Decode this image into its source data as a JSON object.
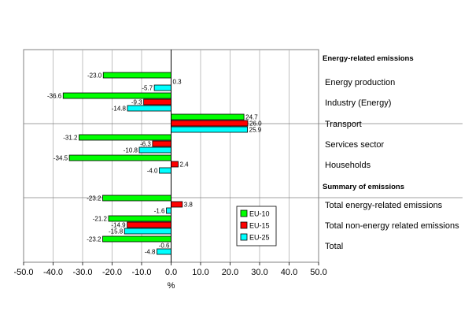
{
  "chart_data": {
    "type": "bar",
    "orientation": "horizontal",
    "xlabel": "%",
    "xlim": [
      -50,
      50
    ],
    "xticks": [
      "-50.0",
      "-40.0",
      "-30.0",
      "-20.0",
      "-10.0",
      "0.0",
      "10.0",
      "20.0",
      "30.0",
      "40.0",
      "50.0"
    ],
    "grid": true,
    "legend_position": "inside-lower-right",
    "sections": [
      {
        "title": "Energy-related emissions",
        "categories": [
          "Energy production",
          "Industry (Energy)",
          "Transport",
          "Services sector",
          "Households"
        ]
      },
      {
        "title": "Summary of emissions",
        "categories": [
          "Total energy-related emissions",
          "Total non-energy related emissions",
          "Total"
        ]
      }
    ],
    "categories": [
      "Energy production",
      "Industry (Energy)",
      "Transport",
      "Services sector",
      "Households",
      "Total energy-related emissions",
      "Total non-energy related emissions",
      "Total"
    ],
    "series": [
      {
        "name": "EU-10",
        "color": "#00ff00",
        "values": [
          -23.0,
          -36.6,
          24.7,
          -31.2,
          -34.5,
          -23.2,
          -21.2,
          -23.2
        ],
        "labels": [
          "-23.0",
          "-36.6",
          "24.7",
          "-31.2",
          "-34.5",
          "-23.2",
          "-21.2",
          "-23.2"
        ]
      },
      {
        "name": "EU-15",
        "color": "#ff0000",
        "values": [
          null,
          -9.3,
          26.0,
          -6.3,
          2.4,
          3.8,
          -14.9,
          null
        ],
        "labels": [
          "",
          "-9.3",
          "26.0",
          "-6.3",
          "2.4",
          "3.8",
          "-14.9",
          ""
        ]
      },
      {
        "name": "EU-25",
        "color": "#00ffff",
        "values": [
          -5.7,
          -14.8,
          25.9,
          -10.8,
          -4.0,
          -1.6,
          -15.8,
          -4.8
        ],
        "labels": [
          "-5.7",
          "-14.8",
          "25.9",
          "-10.8",
          "-4.0",
          "-1.6",
          "-15.8",
          "-4.8"
        ]
      }
    ],
    "extra_labels": [
      {
        "category": "Energy production",
        "text": "0.3"
      },
      {
        "category": "Total",
        "text": "-0.6"
      }
    ]
  }
}
